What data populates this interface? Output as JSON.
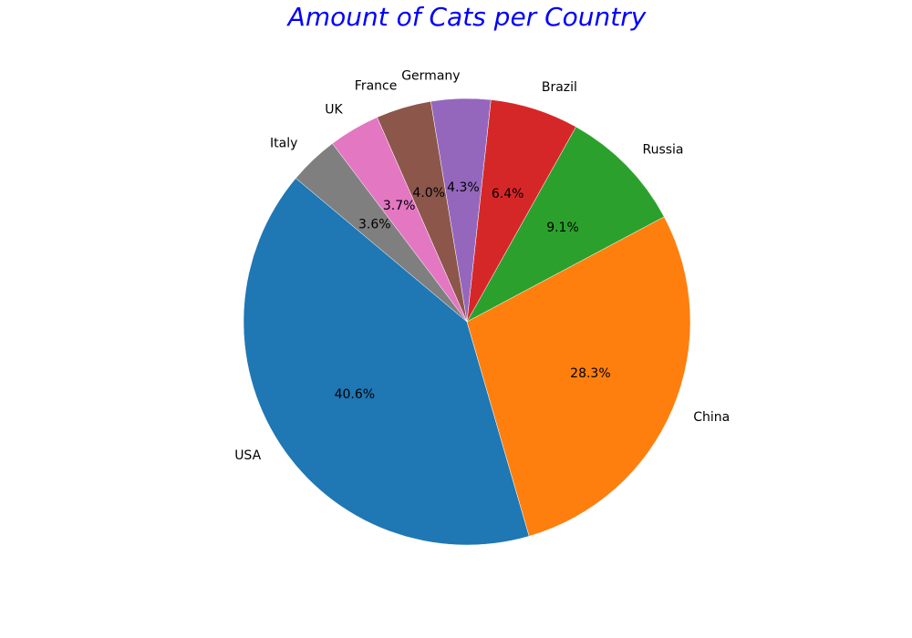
{
  "chart_data": {
    "type": "pie",
    "title": "Amount of Cats per Country",
    "title_color": "#0000ff",
    "start_angle_deg": 140,
    "direction": "counterclockwise",
    "slices": [
      {
        "label": "USA",
        "percent": 40.6,
        "percent_label": "40.6%",
        "color": "#1f77b4"
      },
      {
        "label": "China",
        "percent": 28.3,
        "percent_label": "28.3%",
        "color": "#ff7f0e"
      },
      {
        "label": "Russia",
        "percent": 9.1,
        "percent_label": "9.1%",
        "color": "#2ca02c"
      },
      {
        "label": "Brazil",
        "percent": 6.4,
        "percent_label": "6.4%",
        "color": "#d62728"
      },
      {
        "label": "Germany",
        "percent": 4.3,
        "percent_label": "4.3%",
        "color": "#9467bd"
      },
      {
        "label": "France",
        "percent": 4.0,
        "percent_label": "4.0%",
        "color": "#8c564b"
      },
      {
        "label": "UK",
        "percent": 3.7,
        "percent_label": "3.7%",
        "color": "#e377c2"
      },
      {
        "label": "Italy",
        "percent": 3.6,
        "percent_label": "3.6%",
        "color": "#7f7f7f"
      }
    ]
  }
}
